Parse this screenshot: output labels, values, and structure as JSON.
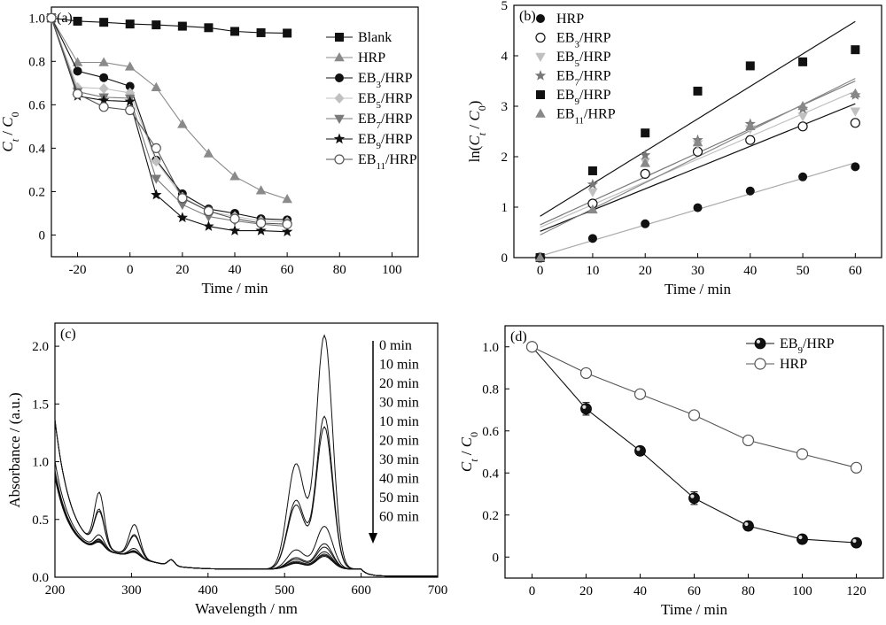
{
  "chart_data": [
    {
      "id": "a",
      "type": "scatter",
      "panel_label": "(a)",
      "xlabel": "Time / min",
      "ylabel": "Ct / C0",
      "xlim": [
        -30,
        110
      ],
      "ylim": [
        -0.1,
        1.05
      ],
      "xticks": [
        -20,
        0,
        20,
        40,
        60,
        80,
        100
      ],
      "yticks": [
        0,
        0.2,
        0.4,
        0.6,
        0.8,
        1.0
      ],
      "legend_position": "top-right",
      "series": [
        {
          "name": "Blank",
          "marker": "square",
          "color": "#111111",
          "connected": true,
          "x": [
            -30,
            -20,
            -10,
            0,
            10,
            20,
            30,
            40,
            50,
            60
          ],
          "y": [
            1.0,
            0.985,
            0.98,
            0.972,
            0.968,
            0.962,
            0.955,
            0.938,
            0.932,
            0.93
          ]
        },
        {
          "name": "HRP",
          "marker": "triangle",
          "color": "#8a8a8a",
          "connected": true,
          "x": [
            -30,
            -20,
            -10,
            0,
            10,
            20,
            30,
            40,
            50,
            60
          ],
          "y": [
            1.0,
            0.795,
            0.795,
            0.775,
            0.68,
            0.51,
            0.375,
            0.27,
            0.205,
            0.165
          ]
        },
        {
          "name": "EB3/HRP",
          "marker": "circle",
          "color": "#111111",
          "connected": true,
          "x": [
            -30,
            -20,
            -10,
            0,
            10,
            20,
            30,
            40,
            50,
            60
          ],
          "y": [
            1.0,
            0.755,
            0.725,
            0.685,
            0.345,
            0.19,
            0.12,
            0.1,
            0.075,
            0.07
          ]
        },
        {
          "name": "EB5/HRP",
          "marker": "diamond",
          "color": "#c0c0c0",
          "connected": true,
          "x": [
            -30,
            -20,
            -10,
            0,
            10,
            20,
            30,
            40,
            50,
            60
          ],
          "y": [
            1.0,
            0.68,
            0.675,
            0.655,
            0.34,
            0.175,
            0.11,
            0.085,
            0.065,
            0.06
          ]
        },
        {
          "name": "EB7/HRP",
          "marker": "triangle-down",
          "color": "#7a7a7a",
          "connected": true,
          "x": [
            -30,
            -20,
            -10,
            0,
            10,
            20,
            30,
            40,
            50,
            60
          ],
          "y": [
            1.0,
            0.66,
            0.635,
            0.63,
            0.26,
            0.14,
            0.085,
            0.065,
            0.05,
            0.04
          ]
        },
        {
          "name": "EB9/HRP",
          "marker": "star",
          "color": "#111111",
          "connected": true,
          "x": [
            -30,
            -20,
            -10,
            0,
            10,
            20,
            30,
            40,
            50,
            60
          ],
          "y": [
            1.0,
            0.64,
            0.62,
            0.615,
            0.185,
            0.08,
            0.04,
            0.02,
            0.02,
            0.015
          ]
        },
        {
          "name": "EB11/HRP",
          "marker": "circle-open",
          "color": "#555555",
          "connected": true,
          "x": [
            -30,
            -20,
            -10,
            0,
            10,
            20,
            30,
            40,
            50,
            60
          ],
          "y": [
            1.0,
            0.65,
            0.59,
            0.575,
            0.4,
            0.17,
            0.11,
            0.075,
            0.055,
            0.05
          ]
        }
      ]
    },
    {
      "id": "b",
      "type": "scatter",
      "panel_label": "(b)",
      "xlabel": "Time / min",
      "ylabel": "ln(Ct / C0)",
      "xlim": [
        -5,
        65
      ],
      "ylim": [
        0,
        5
      ],
      "xticks": [
        0,
        10,
        20,
        30,
        40,
        50,
        60
      ],
      "yticks": [
        0,
        1,
        2,
        3,
        4,
        5
      ],
      "legend_position": "top-left",
      "series": [
        {
          "name": "HRP",
          "marker": "circle",
          "color": "#111111",
          "fit_color": "#aaaaaa",
          "x": [
            0,
            10,
            20,
            30,
            40,
            50,
            60
          ],
          "y": [
            0,
            0.38,
            0.67,
            0.99,
            1.32,
            1.6,
            1.8
          ],
          "fit": [
            0.03,
            1.88
          ]
        },
        {
          "name": "EB3/HRP",
          "marker": "circle-open",
          "color": "#111111",
          "fit_color": "#111111",
          "x": [
            0,
            10,
            20,
            30,
            40,
            50,
            60
          ],
          "y": [
            0,
            1.07,
            1.66,
            2.1,
            2.33,
            2.6,
            2.67
          ],
          "fit": [
            0.52,
            3.05
          ]
        },
        {
          "name": "EB5/HRP",
          "marker": "triangle-down",
          "color": "#c0c0c0",
          "fit_color": "#c0c0c0",
          "x": [
            0,
            10,
            20,
            30,
            40,
            50,
            60
          ],
          "y": [
            0,
            1.3,
            1.9,
            2.25,
            2.55,
            2.8,
            2.9
          ],
          "fit": [
            0.6,
            3.3
          ]
        },
        {
          "name": "EB7/HRP",
          "marker": "star",
          "color": "#777777",
          "fit_color": "#777777",
          "x": [
            0,
            10,
            20,
            30,
            40,
            50,
            60
          ],
          "y": [
            0,
            1.45,
            2.03,
            2.33,
            2.65,
            2.95,
            3.22
          ],
          "fit": [
            0.65,
            3.5
          ]
        },
        {
          "name": "EB9/HRP",
          "marker": "square",
          "color": "#111111",
          "fit_color": "#111111",
          "x": [
            0,
            10,
            20,
            30,
            40,
            50,
            60
          ],
          "y": [
            0,
            1.72,
            2.47,
            3.3,
            3.8,
            3.88,
            4.12
          ],
          "fit": [
            0.82,
            4.68
          ]
        },
        {
          "name": "EB11/HRP",
          "marker": "triangle",
          "color": "#888888",
          "fit_color": "#888888",
          "x": [
            0,
            10,
            20,
            30,
            40,
            50,
            60
          ],
          "y": [
            0,
            0.95,
            1.87,
            2.28,
            2.6,
            3.0,
            3.25
          ],
          "fit": [
            0.45,
            3.55
          ]
        }
      ]
    },
    {
      "id": "c",
      "type": "line",
      "panel_label": "(c)",
      "xlabel": "Wavelength / nm",
      "ylabel": "Absorbance / (a.u.)",
      "xlim": [
        200,
        700
      ],
      "ylim": [
        0,
        2.2
      ],
      "xticks": [
        200,
        300,
        400,
        500,
        600,
        700
      ],
      "yticks": [
        0.0,
        0.5,
        1.0,
        1.5,
        2.0
      ],
      "legend_position": "top-right",
      "legend_arrow": "down",
      "legend_entries": [
        "0 min",
        "10 min",
        "20 min",
        "30 min",
        "10 min",
        "20 min",
        "30 min",
        "40 min",
        "50 min",
        "60 min"
      ],
      "peak_heights": [
        2.02,
        1.32,
        1.23,
        0.37,
        0.22,
        0.19,
        0.15,
        0.13,
        0.12,
        0.11
      ]
    },
    {
      "id": "d",
      "type": "line",
      "panel_label": "(d)",
      "xlabel": "Time / min",
      "ylabel": "Ct / C0",
      "xlim": [
        -10,
        130
      ],
      "ylim": [
        -0.1,
        1.1
      ],
      "xticks": [
        0,
        20,
        40,
        60,
        80,
        100,
        120
      ],
      "yticks": [
        0,
        0.2,
        0.4,
        0.6,
        0.8,
        1.0
      ],
      "legend_position": "top-right",
      "series": [
        {
          "name": "EB9/HRP",
          "marker": "sphere",
          "color": "#111111",
          "x": [
            0,
            20,
            40,
            60,
            80,
            100,
            120
          ],
          "y": [
            1.0,
            0.705,
            0.505,
            0.28,
            0.148,
            0.085,
            0.068
          ],
          "err": [
            0,
            0.03,
            0.01,
            0.03,
            0.02,
            0.01,
            0.01
          ]
        },
        {
          "name": "HRP",
          "marker": "circle-open",
          "color": "#555555",
          "x": [
            0,
            20,
            40,
            60,
            80,
            100,
            120
          ],
          "y": [
            1.0,
            0.875,
            0.775,
            0.675,
            0.555,
            0.49,
            0.425
          ],
          "err": [
            0,
            0.015,
            0.015,
            0.015,
            0.015,
            0.015,
            0.015
          ]
        }
      ]
    }
  ]
}
